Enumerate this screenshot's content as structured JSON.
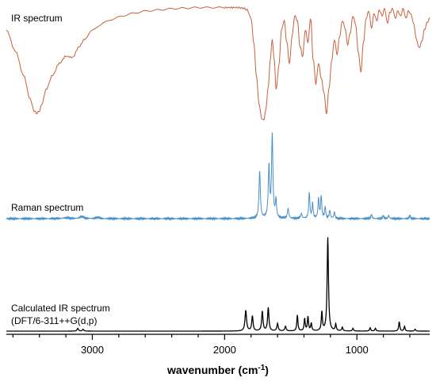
{
  "chart_data": {
    "type": "line",
    "xlabel": "wavenumber (cm",
    "xlabel_superscript": "-1",
    "xlabel_suffix": ")",
    "xlim": [
      3650,
      450
    ],
    "x_reversed": true,
    "x_ticks": [
      3000,
      2000,
      1000
    ],
    "x_tick_labels": [
      "3000",
      "2000",
      "1000"
    ],
    "grid": false,
    "legend": "none",
    "series": [
      {
        "name": "IR spectrum",
        "color": "#c8603c",
        "kind": "transmittance",
        "x": [
          3650,
          3580,
          3520,
          3470,
          3440,
          3420,
          3400,
          3380,
          3350,
          3300,
          3250,
          3200,
          3150,
          3100,
          3060,
          3000,
          2900,
          2800,
          2700,
          2600,
          2500,
          2400,
          2300,
          2200,
          2100,
          2000,
          1950,
          1900,
          1860,
          1830,
          1800,
          1780,
          1760,
          1740,
          1720,
          1705,
          1690,
          1670,
          1655,
          1640,
          1625,
          1610,
          1590,
          1570,
          1550,
          1530,
          1510,
          1490,
          1470,
          1450,
          1430,
          1410,
          1390,
          1370,
          1350,
          1330,
          1310,
          1290,
          1270,
          1250,
          1230,
          1210,
          1190,
          1170,
          1150,
          1130,
          1110,
          1090,
          1070,
          1050,
          1030,
          1010,
          990,
          970,
          950,
          930,
          910,
          890,
          870,
          850,
          830,
          810,
          790,
          770,
          750,
          730,
          710,
          690,
          670,
          650,
          630,
          610,
          590,
          570,
          550,
          530,
          510,
          490,
          470,
          450
        ],
        "values": [
          0.8,
          0.62,
          0.42,
          0.22,
          0.12,
          0.1,
          0.12,
          0.18,
          0.3,
          0.42,
          0.52,
          0.58,
          0.57,
          0.66,
          0.72,
          0.8,
          0.87,
          0.91,
          0.94,
          0.96,
          0.97,
          0.98,
          0.985,
          0.99,
          0.99,
          0.99,
          0.99,
          0.99,
          0.985,
          0.97,
          0.9,
          0.7,
          0.42,
          0.18,
          0.06,
          0.04,
          0.12,
          0.32,
          0.55,
          0.72,
          0.55,
          0.3,
          0.5,
          0.8,
          0.88,
          0.7,
          0.52,
          0.75,
          0.92,
          0.88,
          0.66,
          0.58,
          0.8,
          0.7,
          0.9,
          0.55,
          0.35,
          0.52,
          0.4,
          0.28,
          0.1,
          0.32,
          0.55,
          0.72,
          0.6,
          0.75,
          0.88,
          0.82,
          0.68,
          0.78,
          0.92,
          0.85,
          0.62,
          0.45,
          0.7,
          0.9,
          0.96,
          0.82,
          0.94,
          0.88,
          0.97,
          0.92,
          0.98,
          0.86,
          0.95,
          0.98,
          0.9,
          0.96,
          0.92,
          0.98,
          0.9,
          0.96,
          0.93,
          0.85,
          0.72,
          0.65,
          0.7,
          0.8,
          0.86,
          0.9
        ]
      },
      {
        "name": "Raman spectrum",
        "color": "#4a90c8",
        "kind": "peaks",
        "baseline_noise": 0.012,
        "peaks": [
          {
            "x": 3200,
            "h": 0.01,
            "w": 30
          },
          {
            "x": 3080,
            "h": 0.025,
            "w": 18
          },
          {
            "x": 2960,
            "h": 0.015,
            "w": 15
          },
          {
            "x": 1735,
            "h": 0.58,
            "w": 6
          },
          {
            "x": 1665,
            "h": 0.62,
            "w": 6
          },
          {
            "x": 1640,
            "h": 1.0,
            "w": 6
          },
          {
            "x": 1612,
            "h": 0.22,
            "w": 5
          },
          {
            "x": 1520,
            "h": 0.12,
            "w": 6
          },
          {
            "x": 1420,
            "h": 0.06,
            "w": 6
          },
          {
            "x": 1360,
            "h": 0.32,
            "w": 5
          },
          {
            "x": 1335,
            "h": 0.18,
            "w": 5
          },
          {
            "x": 1290,
            "h": 0.24,
            "w": 5
          },
          {
            "x": 1270,
            "h": 0.27,
            "w": 5
          },
          {
            "x": 1240,
            "h": 0.14,
            "w": 5
          },
          {
            "x": 1205,
            "h": 0.1,
            "w": 5
          },
          {
            "x": 1170,
            "h": 0.08,
            "w": 5
          },
          {
            "x": 890,
            "h": 0.05,
            "w": 5
          },
          {
            "x": 800,
            "h": 0.035,
            "w": 5
          },
          {
            "x": 760,
            "h": 0.04,
            "w": 5
          },
          {
            "x": 600,
            "h": 0.04,
            "w": 5
          }
        ]
      },
      {
        "name": "Calculated IR spectrum",
        "name_line2": "(DFT/6-311++G(d,p)",
        "color": "#000000",
        "kind": "peaks",
        "baseline_noise": 0.0,
        "peaks": [
          {
            "x": 3110,
            "h": 0.03,
            "w": 6
          },
          {
            "x": 3070,
            "h": 0.02,
            "w": 6
          },
          {
            "x": 1840,
            "h": 0.22,
            "w": 7
          },
          {
            "x": 1790,
            "h": 0.16,
            "w": 6
          },
          {
            "x": 1715,
            "h": 0.21,
            "w": 6
          },
          {
            "x": 1670,
            "h": 0.25,
            "w": 6
          },
          {
            "x": 1600,
            "h": 0.08,
            "w": 6
          },
          {
            "x": 1540,
            "h": 0.05,
            "w": 6
          },
          {
            "x": 1450,
            "h": 0.17,
            "w": 5
          },
          {
            "x": 1395,
            "h": 0.13,
            "w": 5
          },
          {
            "x": 1370,
            "h": 0.15,
            "w": 5
          },
          {
            "x": 1345,
            "h": 0.08,
            "w": 5
          },
          {
            "x": 1265,
            "h": 0.2,
            "w": 5
          },
          {
            "x": 1220,
            "h": 1.0,
            "w": 6
          },
          {
            "x": 1160,
            "h": 0.07,
            "w": 5
          },
          {
            "x": 1110,
            "h": 0.04,
            "w": 5
          },
          {
            "x": 1030,
            "h": 0.03,
            "w": 5
          },
          {
            "x": 900,
            "h": 0.035,
            "w": 5
          },
          {
            "x": 860,
            "h": 0.03,
            "w": 5
          },
          {
            "x": 680,
            "h": 0.1,
            "w": 5
          },
          {
            "x": 640,
            "h": 0.05,
            "w": 5
          },
          {
            "x": 560,
            "h": 0.02,
            "w": 5
          }
        ]
      }
    ]
  }
}
